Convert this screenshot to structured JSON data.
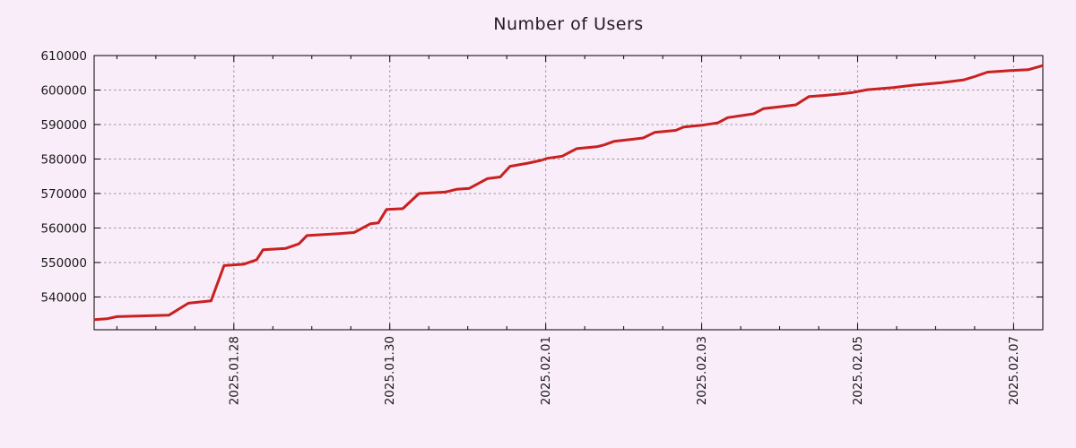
{
  "chart_data": {
    "type": "line",
    "title": "Number of Users",
    "xlabel": "",
    "ylabel": "",
    "legend": "none",
    "grid": "dashed",
    "xlim": [
      "2025-01-26 05:00",
      "2025-02-07 09:00"
    ],
    "ylim": [
      530500,
      610000
    ],
    "x_ticks": [
      {
        "label": "2025.01.28",
        "t": "2025-01-28 00:00"
      },
      {
        "label": "2025.01.30",
        "t": "2025-01-30 00:00"
      },
      {
        "label": "2025.02.01",
        "t": "2025-02-01 00:00"
      },
      {
        "label": "2025.02.03",
        "t": "2025-02-03 00:00"
      },
      {
        "label": "2025.02.05",
        "t": "2025-02-05 00:00"
      },
      {
        "label": "2025.02.07",
        "t": "2025-02-07 00:00"
      }
    ],
    "minor_x_tick_hours": 12,
    "y_ticks": [
      {
        "label": "540000",
        "v": 540000
      },
      {
        "label": "550000",
        "v": 550000
      },
      {
        "label": "560000",
        "v": 560000
      },
      {
        "label": "570000",
        "v": 570000
      },
      {
        "label": "580000",
        "v": 580000
      },
      {
        "label": "590000",
        "v": 590000
      },
      {
        "label": "600000",
        "v": 600000
      },
      {
        "label": "610000",
        "v": 610000
      }
    ],
    "series": [
      {
        "name": "Number of Users",
        "color": "#c92020",
        "points": [
          [
            "2025-01-26 05:00",
            533400
          ],
          [
            "2025-01-26 09:00",
            533700
          ],
          [
            "2025-01-26 12:00",
            534300
          ],
          [
            "2025-01-27 04:00",
            534700
          ],
          [
            "2025-01-27 10:00",
            538200
          ],
          [
            "2025-01-27 17:00",
            538900
          ],
          [
            "2025-01-27 21:00",
            549100
          ],
          [
            "2025-01-28 03:00",
            549500
          ],
          [
            "2025-01-28 07:00",
            550800
          ],
          [
            "2025-01-28 09:00",
            553700
          ],
          [
            "2025-01-28 16:00",
            554100
          ],
          [
            "2025-01-28 20:00",
            555400
          ],
          [
            "2025-01-28 22:30",
            557800
          ],
          [
            "2025-01-29 09:00",
            558400
          ],
          [
            "2025-01-29 13:00",
            558700
          ],
          [
            "2025-01-29 18:00",
            561200
          ],
          [
            "2025-01-29 20:30",
            561500
          ],
          [
            "2025-01-29 23:00",
            565400
          ],
          [
            "2025-01-30 04:00",
            565600
          ],
          [
            "2025-01-30 09:00",
            570000
          ],
          [
            "2025-01-30 17:00",
            570400
          ],
          [
            "2025-01-30 20:30",
            571200
          ],
          [
            "2025-01-31 00:30",
            571500
          ],
          [
            "2025-01-31 06:00",
            574300
          ],
          [
            "2025-01-31 10:00",
            574800
          ],
          [
            "2025-01-31 13:00",
            577900
          ],
          [
            "2025-01-31 18:30",
            578800
          ],
          [
            "2025-01-31 22:30",
            579600
          ],
          [
            "2025-02-01 00:30",
            580200
          ],
          [
            "2025-02-01 05:00",
            580800
          ],
          [
            "2025-02-01 09:30",
            583000
          ],
          [
            "2025-02-01 16:00",
            583600
          ],
          [
            "2025-02-01 18:00",
            584100
          ],
          [
            "2025-02-01 21:00",
            585100
          ],
          [
            "2025-02-02 02:30",
            585700
          ],
          [
            "2025-02-02 06:00",
            586100
          ],
          [
            "2025-02-02 09:30",
            587700
          ],
          [
            "2025-02-02 16:00",
            588300
          ],
          [
            "2025-02-02 18:30",
            589300
          ],
          [
            "2025-02-03 00:00",
            589800
          ],
          [
            "2025-02-03 03:00",
            590200
          ],
          [
            "2025-02-03 05:00",
            590500
          ],
          [
            "2025-02-03 08:00",
            592000
          ],
          [
            "2025-02-03 16:00",
            593100
          ],
          [
            "2025-02-03 19:00",
            594600
          ],
          [
            "2025-02-04 00:30",
            595200
          ],
          [
            "2025-02-04 05:00",
            595700
          ],
          [
            "2025-02-04 09:00",
            598100
          ],
          [
            "2025-02-04 13:30",
            598400
          ],
          [
            "2025-02-04 18:00",
            598800
          ],
          [
            "2025-02-04 22:30",
            599300
          ],
          [
            "2025-02-05 03:00",
            600100
          ],
          [
            "2025-02-05 11:00",
            600700
          ],
          [
            "2025-02-05 17:00",
            601400
          ],
          [
            "2025-02-06 01:30",
            602100
          ],
          [
            "2025-02-06 08:30",
            602900
          ],
          [
            "2025-02-06 12:00",
            603900
          ],
          [
            "2025-02-06 16:00",
            605200
          ],
          [
            "2025-02-06 23:00",
            605650
          ],
          [
            "2025-02-07 04:30",
            605900
          ],
          [
            "2025-02-07 09:00",
            607100
          ]
        ]
      }
    ]
  },
  "colors": {
    "background": "#f9edf9",
    "line": "#c92020",
    "grid": "#9a949a",
    "axis": "#000000",
    "tick_text": "#1a1a1a",
    "title_text": "#231a28"
  }
}
